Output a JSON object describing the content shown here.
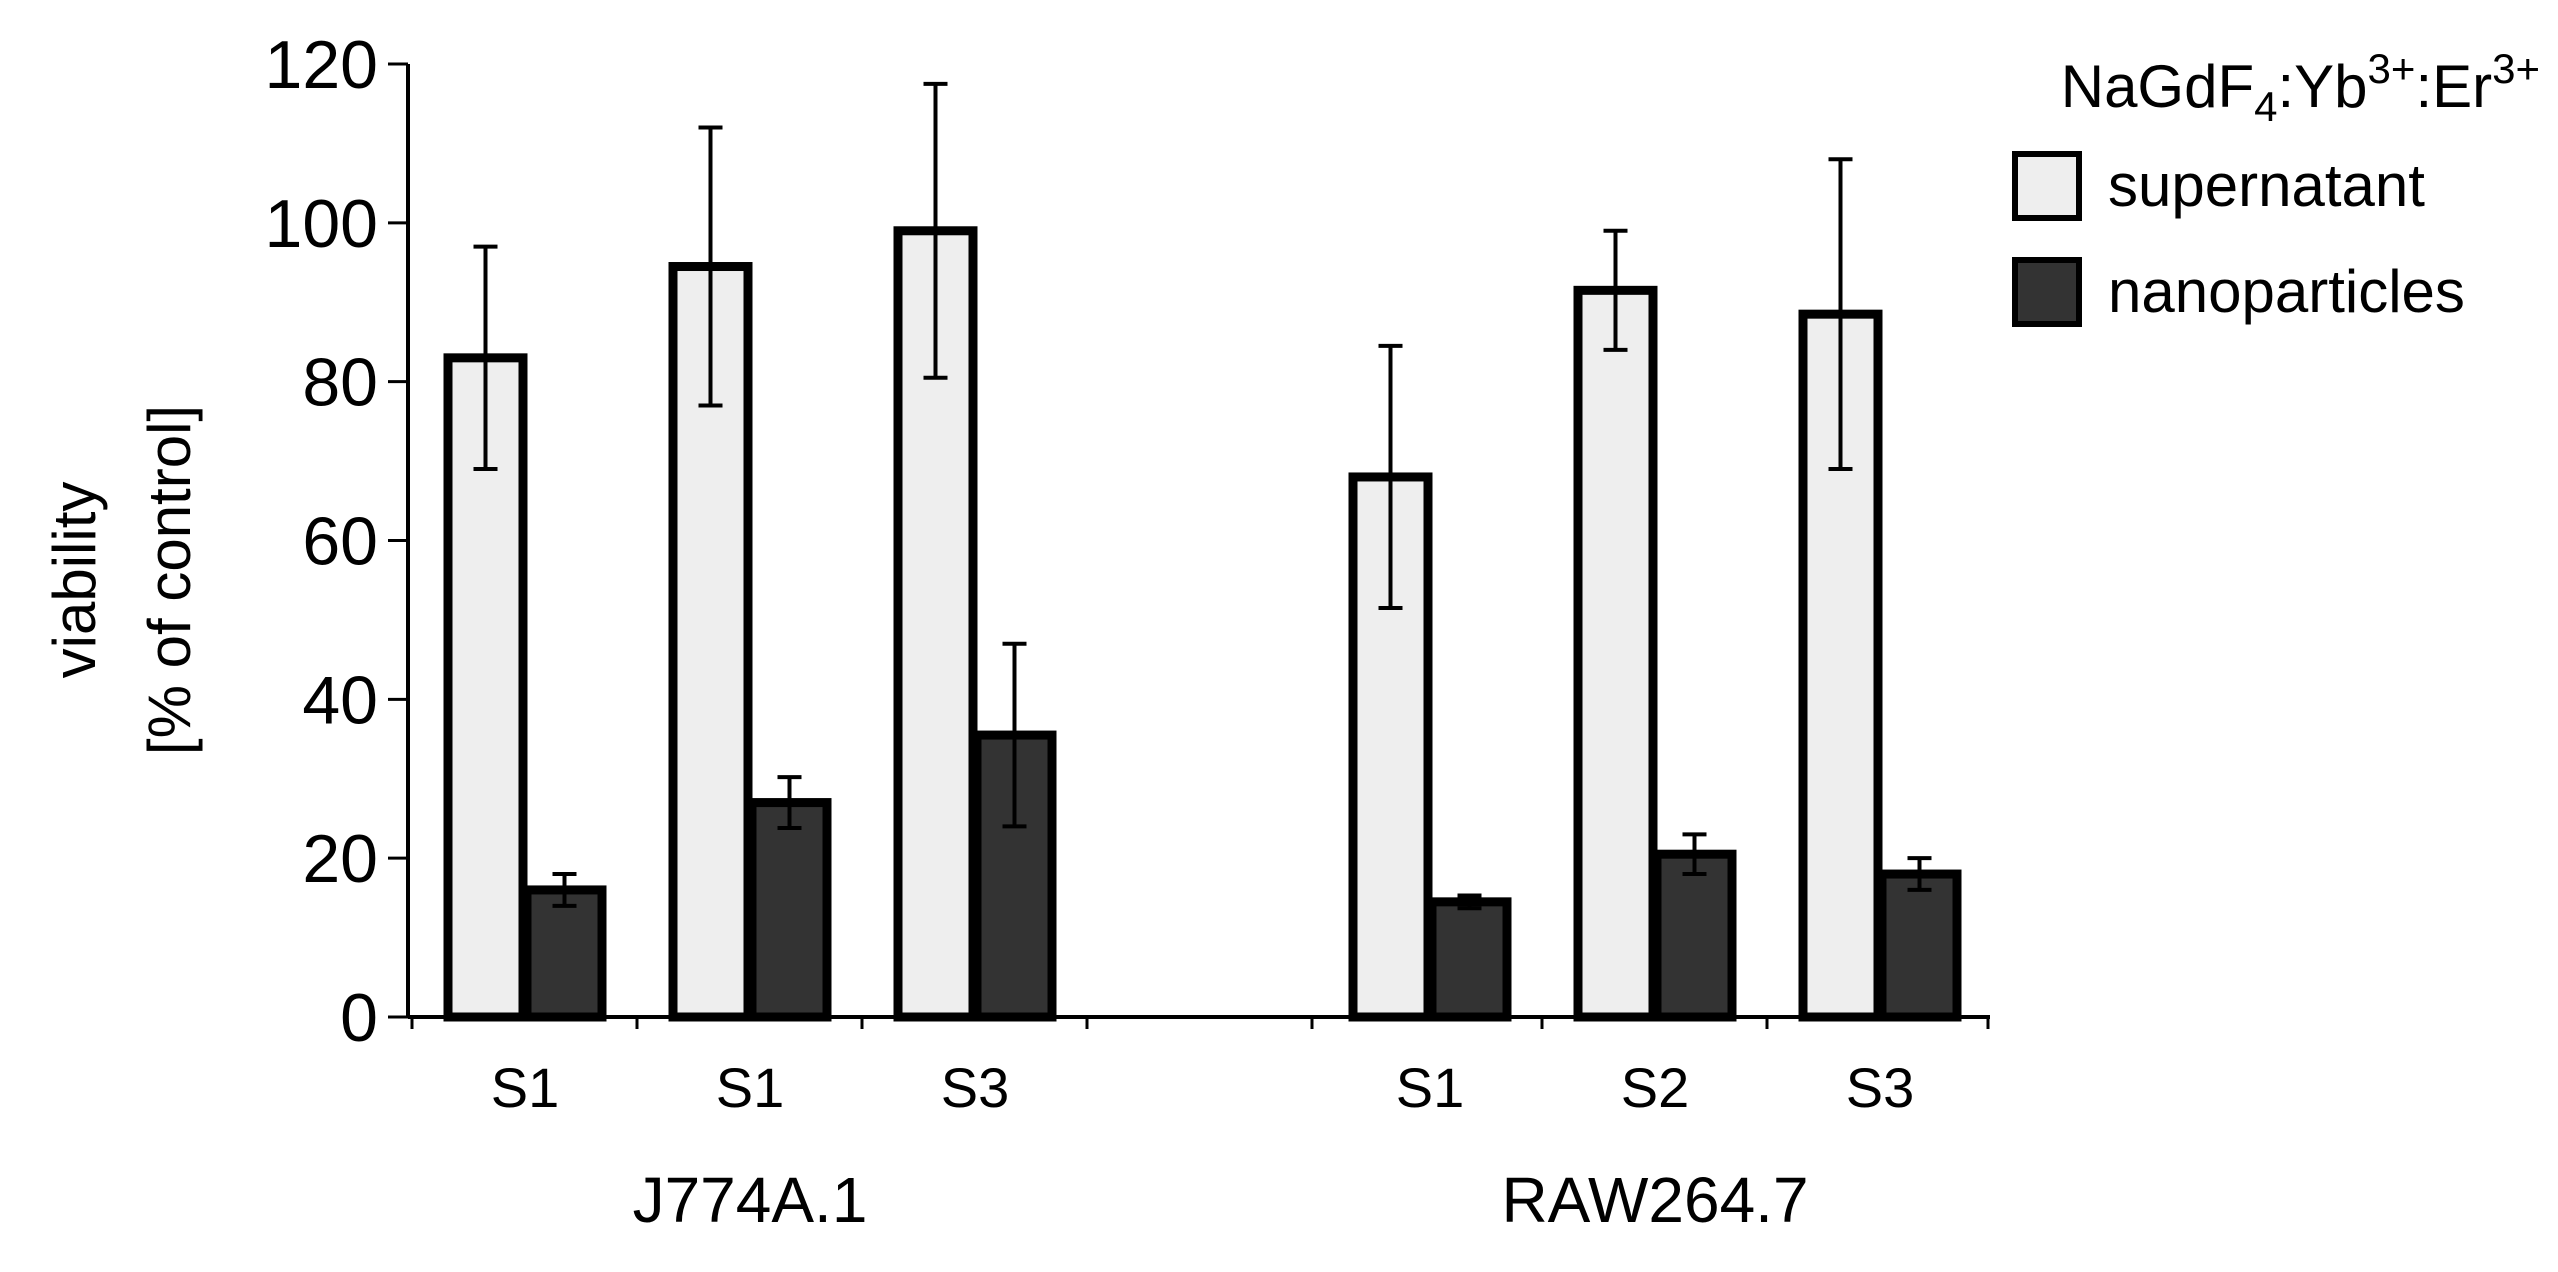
{
  "chart_data": {
    "type": "bar",
    "ylabel_line1": "viability",
    "ylabel_line2": "[% of control]",
    "ylim": [
      0,
      120
    ],
    "yticks": [
      0,
      20,
      40,
      60,
      80,
      100,
      120
    ],
    "legend_title": {
      "base": "NaGdF",
      "sub": "4",
      "mid": ":Yb",
      "sup1": "3+",
      "mid2": ":Er",
      "sup2": "3+"
    },
    "groups": [
      "J774A.1",
      "RAW264.7"
    ],
    "categories": [
      {
        "label": "S1",
        "group": "J774A.1"
      },
      {
        "label": "S1",
        "group": "J774A.1"
      },
      {
        "label": "S3",
        "group": "J774A.1"
      },
      {
        "label": "S1",
        "group": "RAW264.7"
      },
      {
        "label": "S2",
        "group": "RAW264.7"
      },
      {
        "label": "S3",
        "group": "RAW264.7"
      }
    ],
    "series": [
      {
        "name": "supernatant",
        "color": "#eeeeee",
        "values": [
          83,
          94.5,
          99,
          68,
          91.5,
          88.5
        ],
        "errors": [
          14,
          17.5,
          18.5,
          16.5,
          7.5,
          19.5
        ]
      },
      {
        "name": "nanoparticles",
        "color": "#333333",
        "values": [
          16,
          27,
          35.5,
          14.5,
          20.5,
          18
        ],
        "errors": [
          2,
          3.2,
          11.5,
          0.8,
          2.5,
          2
        ]
      }
    ]
  }
}
